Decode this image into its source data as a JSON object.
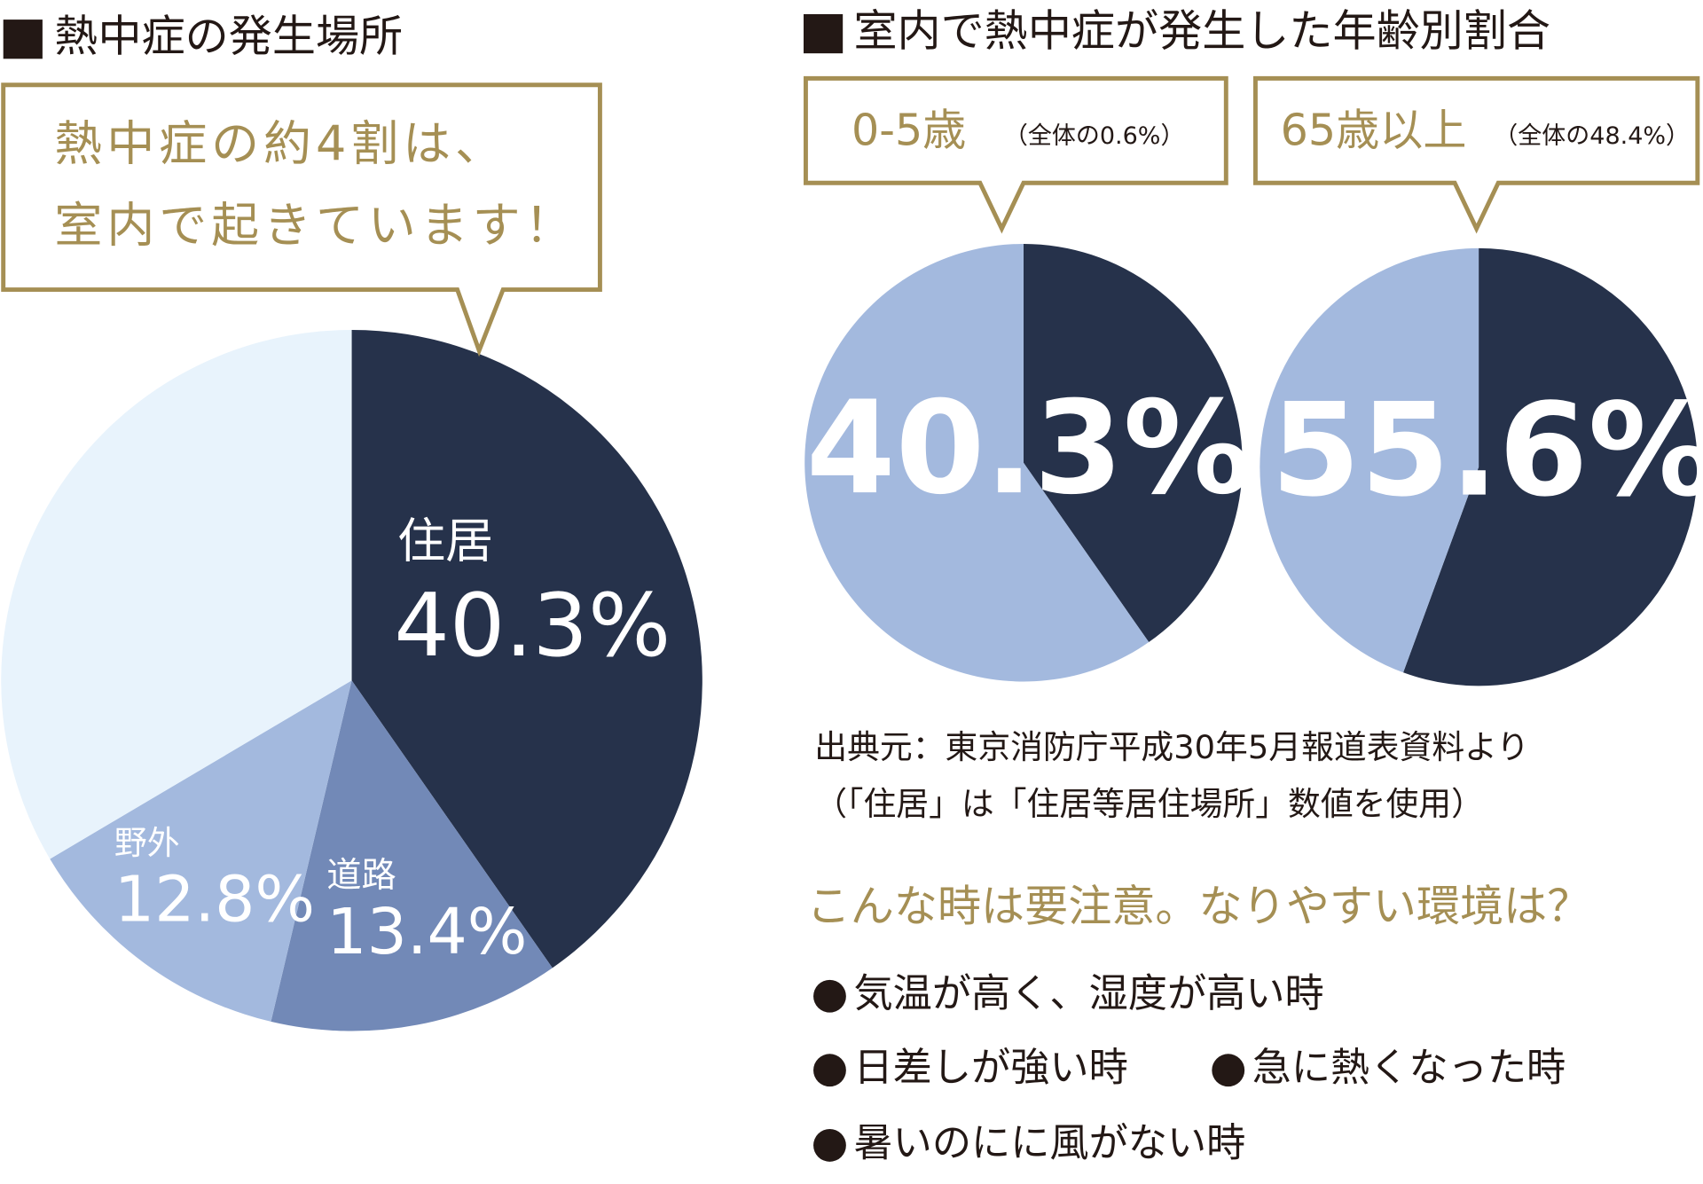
{
  "chart_data": [
    {
      "type": "pie",
      "title": "熱中症の発生場所",
      "annotation": [
        "熱中症の約4割は、",
        "室内で起きています！"
      ],
      "categories": [
        "住居",
        "道路",
        "野外",
        null
      ],
      "values": [
        40.3,
        13.4,
        12.8,
        33.5
      ],
      "value_labels": [
        "40.3%",
        "13.4%",
        "12.8%",
        null
      ],
      "colors": [
        "#26324b",
        "#7289b7",
        "#a3b9de",
        "#e8f3fc"
      ]
    },
    {
      "type": "pie",
      "title": "室内で熱中症が発生した年齢別割合",
      "subtitle": "0-5歳",
      "note": "（全体の0.6%）",
      "categories": [
        null,
        null
      ],
      "values": [
        40.3,
        59.7
      ],
      "value_labels": [
        "40.3%",
        null
      ],
      "colors": [
        "#26324b",
        "#a3b9de"
      ]
    },
    {
      "type": "pie",
      "subtitle": "65歳以上",
      "note": "（全体の48.4%）",
      "categories": [
        null,
        null
      ],
      "values": [
        55.6,
        44.4
      ],
      "value_labels": [
        "55.6%",
        null
      ],
      "colors": [
        "#26324b",
        "#a3b9de"
      ]
    }
  ],
  "notes": {
    "source": [
      "出典元：東京消防庁平成30年5月報道表資料より",
      "（「住居」は「住居等居住場所」数値を使用）"
    ],
    "heading": "こんな時は要注意。なりやすい環境は？",
    "bullets": [
      "気温が高く、湿度が高い時",
      "日差しが強い時",
      "急に熱くなった時",
      "暑いのにに風がない時"
    ]
  }
}
